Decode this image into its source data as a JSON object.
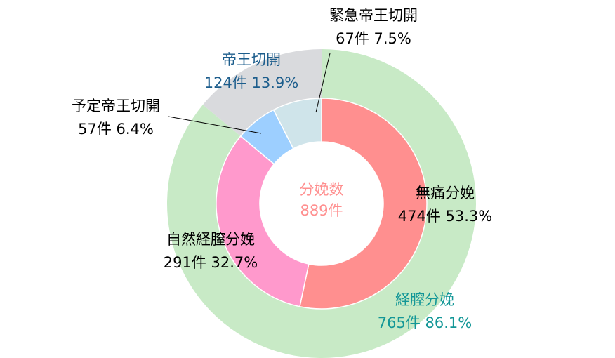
{
  "chart_data": {
    "type": "donut",
    "center_label": [
      "分娩数",
      "889件"
    ],
    "rings": [
      {
        "categories": [
          "無痛分娩",
          "自然経膣分娩",
          "予定帝王切開",
          "緊急帝王切開"
        ],
        "values": [
          474,
          291,
          57,
          67
        ],
        "value_labels": [
          "474件 53.3%",
          "291件 32.7%",
          "57件 6.4%",
          "67件 7.5%"
        ],
        "colors": [
          "#ff8f8f",
          "#ff99cc",
          "#9dcfff",
          "#cfe4ea"
        ]
      },
      {
        "categories": [
          "経膣分娩",
          "帝王切開"
        ],
        "values": [
          765,
          124
        ],
        "value_labels": [
          "765件 86.1%",
          "124件 13.9%"
        ],
        "colors": [
          "#c8eac6",
          "#d9dadd"
        ]
      }
    ]
  }
}
